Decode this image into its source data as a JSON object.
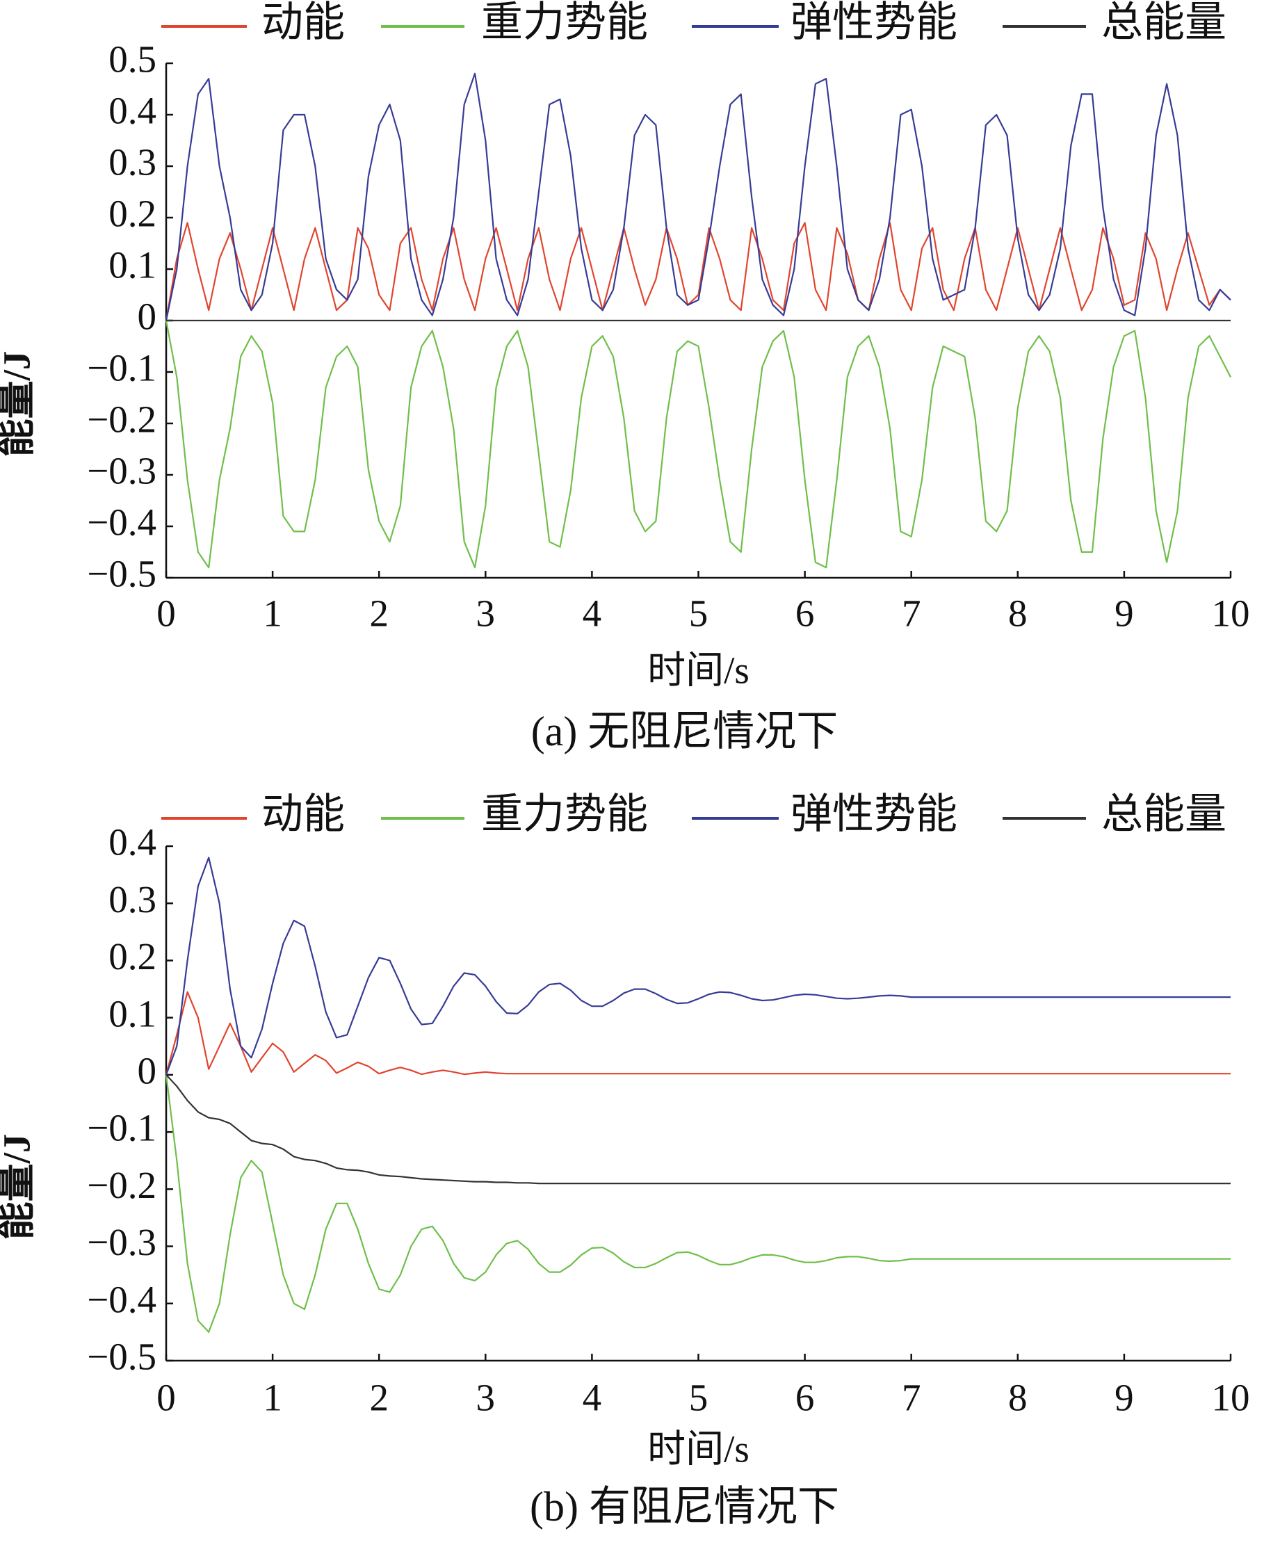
{
  "chart_data": [
    {
      "type": "line",
      "caption": "(a)  无阻尼情况下",
      "x_label": "时间/s",
      "y_label": "能量/J",
      "xlim": [
        0,
        10
      ],
      "ylim": [
        -0.5,
        0.5
      ],
      "xticks": [
        0,
        1,
        2,
        3,
        4,
        5,
        6,
        7,
        8,
        9,
        10
      ],
      "yticks": [
        {
          "value": -0.5,
          "label": "−0.5"
        },
        {
          "value": -0.4,
          "label": "−0.4"
        },
        {
          "value": -0.3,
          "label": "−0.3"
        },
        {
          "value": -0.2,
          "label": "−0.2"
        },
        {
          "value": -0.1,
          "label": "−0.1"
        },
        0,
        0.1,
        0.2,
        0.3,
        0.4,
        0.5
      ],
      "x": [
        0,
        0.1,
        0.2,
        0.3,
        0.4,
        0.5,
        0.6,
        0.7,
        0.8,
        0.9,
        1,
        1.1,
        1.2,
        1.3,
        1.4,
        1.5,
        1.6,
        1.7,
        1.8,
        1.9,
        2,
        2.1,
        2.2,
        2.3,
        2.4,
        2.5,
        2.6,
        2.7,
        2.8,
        2.9,
        3,
        3.1,
        3.2,
        3.3,
        3.4,
        3.5,
        3.6,
        3.7,
        3.8,
        3.9,
        4,
        4.1,
        4.2,
        4.3,
        4.4,
        4.5,
        4.6,
        4.7,
        4.8,
        4.9,
        5,
        5.1,
        5.2,
        5.3,
        5.4,
        5.5,
        5.6,
        5.7,
        5.8,
        5.9,
        6,
        6.1,
        6.2,
        6.3,
        6.4,
        6.5,
        6.6,
        6.7,
        6.8,
        6.9,
        7,
        7.1,
        7.2,
        7.3,
        7.4,
        7.5,
        7.6,
        7.7,
        7.8,
        7.9,
        8,
        8.1,
        8.2,
        8.3,
        8.4,
        8.5,
        8.6,
        8.7,
        8.8,
        8.9,
        9,
        9.1,
        9.2,
        9.3,
        9.4,
        9.5,
        9.6,
        9.7,
        9.8,
        9.9,
        10
      ],
      "series": [
        {
          "name": "动能",
          "color": "#e0452e",
          "values": [
            0,
            0.12,
            0.19,
            0.1,
            0.02,
            0.12,
            0.17,
            0.1,
            0.02,
            0.1,
            0.18,
            0.1,
            0.02,
            0.12,
            0.18,
            0.1,
            0.02,
            0.04,
            0.18,
            0.14,
            0.05,
            0.02,
            0.15,
            0.18,
            0.08,
            0.02,
            0.12,
            0.18,
            0.08,
            0.02,
            0.12,
            0.18,
            0.1,
            0.02,
            0.12,
            0.18,
            0.08,
            0.02,
            0.12,
            0.18,
            0.1,
            0.02,
            0.1,
            0.18,
            0.1,
            0.03,
            0.08,
            0.18,
            0.12,
            0.03,
            0.05,
            0.18,
            0.12,
            0.04,
            0.02,
            0.18,
            0.12,
            0.04,
            0.02,
            0.15,
            0.19,
            0.06,
            0.02,
            0.18,
            0.13,
            0.04,
            0.02,
            0.12,
            0.19,
            0.06,
            0.02,
            0.14,
            0.18,
            0.06,
            0.02,
            0.12,
            0.18,
            0.06,
            0.02,
            0.1,
            0.18,
            0.1,
            0.02,
            0.1,
            0.18,
            0.1,
            0.02,
            0.06,
            0.18,
            0.12,
            0.03,
            0.04,
            0.17,
            0.12,
            0.02,
            0.1,
            0.17,
            0.1,
            0.03,
            0.06,
            0.04
          ]
        },
        {
          "name": "重力势能",
          "color": "#6fbf4a",
          "values": [
            0,
            -0.11,
            -0.31,
            -0.45,
            -0.48,
            -0.31,
            -0.21,
            -0.07,
            -0.03,
            -0.06,
            -0.16,
            -0.38,
            -0.41,
            -0.41,
            -0.31,
            -0.13,
            -0.07,
            -0.05,
            -0.09,
            -0.29,
            -0.39,
            -0.43,
            -0.36,
            -0.13,
            -0.05,
            -0.02,
            -0.09,
            -0.21,
            -0.43,
            -0.48,
            -0.36,
            -0.13,
            -0.05,
            -0.02,
            -0.09,
            -0.26,
            -0.43,
            -0.44,
            -0.33,
            -0.15,
            -0.05,
            -0.03,
            -0.07,
            -0.19,
            -0.37,
            -0.41,
            -0.39,
            -0.19,
            -0.06,
            -0.04,
            -0.05,
            -0.17,
            -0.31,
            -0.43,
            -0.45,
            -0.25,
            -0.09,
            -0.04,
            -0.02,
            -0.11,
            -0.31,
            -0.47,
            -0.48,
            -0.31,
            -0.11,
            -0.05,
            -0.03,
            -0.09,
            -0.21,
            -0.41,
            -0.42,
            -0.31,
            -0.13,
            -0.05,
            -0.06,
            -0.07,
            -0.19,
            -0.39,
            -0.41,
            -0.37,
            -0.17,
            -0.06,
            -0.03,
            -0.06,
            -0.15,
            -0.35,
            -0.45,
            -0.45,
            -0.23,
            -0.09,
            -0.03,
            -0.02,
            -0.15,
            -0.37,
            -0.47,
            -0.37,
            -0.15,
            -0.05,
            -0.03,
            -0.07,
            -0.11
          ]
        },
        {
          "name": "弹性势能",
          "color": "#363c96",
          "values": [
            0,
            0.1,
            0.3,
            0.44,
            0.47,
            0.3,
            0.2,
            0.06,
            0.02,
            0.05,
            0.15,
            0.37,
            0.4,
            0.4,
            0.3,
            0.12,
            0.06,
            0.04,
            0.08,
            0.28,
            0.38,
            0.42,
            0.35,
            0.12,
            0.04,
            0.01,
            0.08,
            0.2,
            0.42,
            0.48,
            0.35,
            0.12,
            0.04,
            0.01,
            0.08,
            0.25,
            0.42,
            0.43,
            0.32,
            0.14,
            0.04,
            0.02,
            0.06,
            0.18,
            0.36,
            0.4,
            0.38,
            0.18,
            0.05,
            0.03,
            0.04,
            0.16,
            0.3,
            0.42,
            0.44,
            0.24,
            0.08,
            0.03,
            0.01,
            0.1,
            0.3,
            0.46,
            0.47,
            0.3,
            0.1,
            0.04,
            0.02,
            0.08,
            0.2,
            0.4,
            0.41,
            0.3,
            0.12,
            0.04,
            0.05,
            0.06,
            0.18,
            0.38,
            0.4,
            0.36,
            0.16,
            0.05,
            0.02,
            0.05,
            0.14,
            0.34,
            0.44,
            0.44,
            0.22,
            0.08,
            0.02,
            0.01,
            0.14,
            0.36,
            0.46,
            0.36,
            0.14,
            0.04,
            0.02,
            0.06,
            0.04
          ]
        },
        {
          "name": "总能量",
          "color": "#333333",
          "values": [
            0,
            0,
            0,
            0,
            0,
            0,
            0,
            0,
            0,
            0,
            0,
            0,
            0,
            0,
            0,
            0,
            0,
            0,
            0,
            0,
            0,
            0,
            0,
            0,
            0,
            0,
            0,
            0,
            0,
            0,
            0,
            0,
            0,
            0,
            0,
            0,
            0,
            0,
            0,
            0,
            0,
            0,
            0,
            0,
            0,
            0,
            0,
            0,
            0,
            0,
            0,
            0,
            0,
            0,
            0,
            0,
            0,
            0,
            0,
            0,
            0,
            0,
            0,
            0,
            0,
            0,
            0,
            0,
            0,
            0,
            0,
            0,
            0,
            0,
            0,
            0,
            0,
            0,
            0,
            0,
            0,
            0,
            0,
            0,
            0,
            0,
            0,
            0,
            0,
            0,
            0,
            0,
            0,
            0,
            0,
            0,
            0,
            0,
            0,
            0,
            0
          ]
        }
      ]
    },
    {
      "type": "line",
      "caption": "(b)  有阻尼情况下",
      "x_label": "时间/s",
      "y_label": "能量/J",
      "xlim": [
        0,
        10
      ],
      "ylim": [
        -0.5,
        0.4
      ],
      "xticks": [
        0,
        1,
        2,
        3,
        4,
        5,
        6,
        7,
        8,
        9,
        10
      ],
      "yticks": [
        {
          "value": -0.5,
          "label": "−0.5"
        },
        {
          "value": -0.4,
          "label": "−0.4"
        },
        {
          "value": -0.3,
          "label": "−0.3"
        },
        {
          "value": -0.2,
          "label": "−0.2"
        },
        {
          "value": -0.1,
          "label": "−0.1"
        },
        0,
        0.1,
        0.2,
        0.3,
        0.4
      ],
      "x": [
        0,
        0.1,
        0.2,
        0.3,
        0.4,
        0.5,
        0.6,
        0.7,
        0.8,
        0.9,
        1,
        1.1,
        1.2,
        1.3,
        1.4,
        1.5,
        1.6,
        1.7,
        1.8,
        1.9,
        2,
        2.1,
        2.2,
        2.3,
        2.4,
        2.5,
        2.6,
        2.7,
        2.8,
        2.9,
        3,
        3.1,
        3.2,
        3.3,
        3.4,
        3.5,
        3.6,
        3.7,
        3.8,
        3.9,
        4,
        4.1,
        4.2,
        4.3,
        4.4,
        4.5,
        4.6,
        4.7,
        4.8,
        4.9,
        5,
        5.1,
        5.2,
        5.3,
        5.4,
        5.5,
        5.6,
        5.7,
        5.8,
        5.9,
        6,
        6.1,
        6.2,
        6.3,
        6.4,
        6.5,
        6.6,
        6.7,
        6.8,
        6.9,
        7,
        7.1,
        7.2,
        7.3,
        7.4,
        7.5,
        7.6,
        7.7,
        7.8,
        7.9,
        8,
        8.1,
        8.2,
        8.3,
        8.4,
        8.5,
        8.6,
        8.7,
        8.8,
        8.9,
        9,
        9.1,
        9.2,
        9.3,
        9.4,
        9.5,
        9.6,
        9.7,
        9.8,
        9.9,
        10
      ],
      "series": [
        {
          "name": "动能",
          "color": "#e0452e",
          "values": [
            0,
            0.07,
            0.145,
            0.1,
            0.01,
            0.05,
            0.09,
            0.05,
            0.005,
            0.03,
            0.055,
            0.04,
            0.005,
            0.02,
            0.035,
            0.025,
            0.003,
            0.012,
            0.022,
            0.015,
            0.002,
            0.008,
            0.013,
            0.008,
            0.001,
            0.005,
            0.008,
            0.005,
            0.001,
            0.003,
            0.005,
            0.003,
            0.002,
            0.002,
            0.002,
            0.002,
            0.002,
            0.002,
            0.002,
            0.002,
            0.002,
            0.002,
            0.002,
            0.002,
            0.002,
            0.002,
            0.002,
            0.002,
            0.002,
            0.002,
            0.002,
            0.002,
            0.002,
            0.002,
            0.002,
            0.002,
            0.002,
            0.002,
            0.002,
            0.002,
            0.002,
            0.002,
            0.002,
            0.002,
            0.002,
            0.002,
            0.002,
            0.002,
            0.002,
            0.002,
            0.002,
            0.002,
            0.002,
            0.002,
            0.002,
            0.002,
            0.002,
            0.002,
            0.002,
            0.002,
            0.002,
            0.002,
            0.002,
            0.002,
            0.002,
            0.002,
            0.002,
            0.002,
            0.002,
            0.002,
            0.002,
            0.002,
            0.002,
            0.002,
            0.002,
            0.002,
            0.002,
            0.002,
            0.002,
            0.002,
            0.002
          ]
        },
        {
          "name": "重力势能",
          "color": "#6fbf4a",
          "values": [
            0,
            -0.15,
            -0.33,
            -0.43,
            -0.45,
            -0.4,
            -0.28,
            -0.18,
            -0.15,
            -0.17,
            -0.26,
            -0.35,
            -0.4,
            -0.41,
            -0.35,
            -0.27,
            -0.225,
            -0.225,
            -0.27,
            -0.33,
            -0.375,
            -0.38,
            -0.35,
            -0.3,
            -0.27,
            -0.265,
            -0.29,
            -0.33,
            -0.355,
            -0.36,
            -0.345,
            -0.315,
            -0.295,
            -0.29,
            -0.305,
            -0.33,
            -0.345,
            -0.345,
            -0.333,
            -0.315,
            -0.303,
            -0.302,
            -0.312,
            -0.327,
            -0.337,
            -0.337,
            -0.33,
            -0.32,
            -0.311,
            -0.31,
            -0.316,
            -0.325,
            -0.332,
            -0.332,
            -0.327,
            -0.32,
            -0.315,
            -0.315,
            -0.318,
            -0.324,
            -0.328,
            -0.328,
            -0.325,
            -0.32,
            -0.318,
            -0.318,
            -0.321,
            -0.325,
            -0.326,
            -0.325,
            -0.322,
            -0.322,
            -0.322,
            -0.322,
            -0.322,
            -0.322,
            -0.322,
            -0.322,
            -0.322,
            -0.322,
            -0.322,
            -0.322,
            -0.322,
            -0.322,
            -0.322,
            -0.322,
            -0.322,
            -0.322,
            -0.322,
            -0.322,
            -0.322,
            -0.322,
            -0.322,
            -0.322,
            -0.322,
            -0.322,
            -0.322,
            -0.322,
            -0.322,
            -0.322,
            -0.322
          ]
        },
        {
          "name": "弹性势能",
          "color": "#363c96",
          "values": [
            0,
            0.05,
            0.2,
            0.33,
            0.38,
            0.3,
            0.15,
            0.05,
            0.03,
            0.08,
            0.16,
            0.23,
            0.27,
            0.26,
            0.19,
            0.11,
            0.065,
            0.07,
            0.12,
            0.17,
            0.205,
            0.2,
            0.16,
            0.115,
            0.088,
            0.09,
            0.12,
            0.155,
            0.178,
            0.175,
            0.155,
            0.128,
            0.108,
            0.107,
            0.122,
            0.145,
            0.158,
            0.16,
            0.148,
            0.13,
            0.12,
            0.12,
            0.13,
            0.143,
            0.15,
            0.15,
            0.142,
            0.132,
            0.125,
            0.126,
            0.133,
            0.141,
            0.145,
            0.144,
            0.139,
            0.133,
            0.13,
            0.131,
            0.135,
            0.139,
            0.141,
            0.14,
            0.137,
            0.134,
            0.133,
            0.134,
            0.136,
            0.138,
            0.139,
            0.138,
            0.136,
            0.136,
            0.136,
            0.136,
            0.136,
            0.136,
            0.136,
            0.136,
            0.136,
            0.136,
            0.136,
            0.136,
            0.136,
            0.136,
            0.136,
            0.136,
            0.136,
            0.136,
            0.136,
            0.136,
            0.136,
            0.136,
            0.136,
            0.136,
            0.136,
            0.136,
            0.136,
            0.136,
            0.136,
            0.136,
            0.136
          ]
        },
        {
          "name": "总能量",
          "color": "#333333",
          "values": [
            0,
            -0.02,
            -0.045,
            -0.065,
            -0.075,
            -0.078,
            -0.085,
            -0.1,
            -0.115,
            -0.12,
            -0.122,
            -0.13,
            -0.143,
            -0.148,
            -0.15,
            -0.155,
            -0.163,
            -0.166,
            -0.167,
            -0.17,
            -0.175,
            -0.177,
            -0.178,
            -0.18,
            -0.182,
            -0.183,
            -0.184,
            -0.185,
            -0.186,
            -0.187,
            -0.187,
            -0.188,
            -0.188,
            -0.189,
            -0.189,
            -0.19,
            -0.19,
            -0.19,
            -0.19,
            -0.19,
            -0.19,
            -0.19,
            -0.19,
            -0.19,
            -0.19,
            -0.19,
            -0.19,
            -0.19,
            -0.19,
            -0.19,
            -0.19,
            -0.19,
            -0.19,
            -0.19,
            -0.19,
            -0.19,
            -0.19,
            -0.19,
            -0.19,
            -0.19,
            -0.19,
            -0.19,
            -0.19,
            -0.19,
            -0.19,
            -0.19,
            -0.19,
            -0.19,
            -0.19,
            -0.19,
            -0.19,
            -0.19,
            -0.19,
            -0.19,
            -0.19,
            -0.19,
            -0.19,
            -0.19,
            -0.19,
            -0.19,
            -0.19,
            -0.19,
            -0.19,
            -0.19,
            -0.19,
            -0.19,
            -0.19,
            -0.19,
            -0.19,
            -0.19,
            -0.19,
            -0.19,
            -0.19,
            -0.19,
            -0.19,
            -0.19,
            -0.19,
            -0.19,
            -0.19,
            -0.19,
            -0.19
          ]
        }
      ]
    }
  ]
}
